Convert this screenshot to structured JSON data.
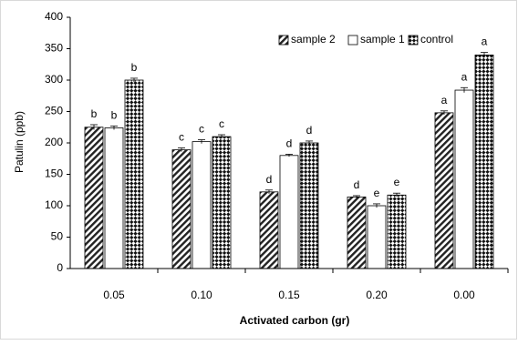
{
  "chart_data": {
    "type": "bar",
    "xlabel": "Activated carbon (gr)",
    "ylabel": "Patulin (ppb)",
    "ylim": [
      0,
      400
    ],
    "yticks": [
      0,
      50,
      100,
      150,
      200,
      250,
      300,
      350,
      400
    ],
    "categories": [
      "0.05",
      "0.10",
      "0.15",
      "0.20",
      "0.00"
    ],
    "series": [
      {
        "name": "sample 2",
        "pattern": "diagonal-hatch",
        "values": [
          225,
          189,
          122,
          114,
          248
        ],
        "errors": [
          4,
          3,
          3,
          2,
          3
        ],
        "labels": [
          "b",
          "c",
          "d",
          "d",
          "a"
        ]
      },
      {
        "name": "sample 1",
        "pattern": "white",
        "values": [
          224,
          202,
          180,
          100,
          284
        ],
        "errors": [
          3,
          3,
          2,
          3,
          4
        ],
        "labels": [
          "b",
          "c",
          "d",
          "e",
          "a"
        ]
      },
      {
        "name": "control",
        "pattern": "checker",
        "values": [
          300,
          210,
          200,
          117,
          340
        ],
        "errors": [
          3,
          3,
          3,
          3,
          4
        ],
        "labels": [
          "b",
          "c",
          "d",
          "e",
          "a"
        ]
      }
    ],
    "legend": "top-right",
    "grid": false
  }
}
